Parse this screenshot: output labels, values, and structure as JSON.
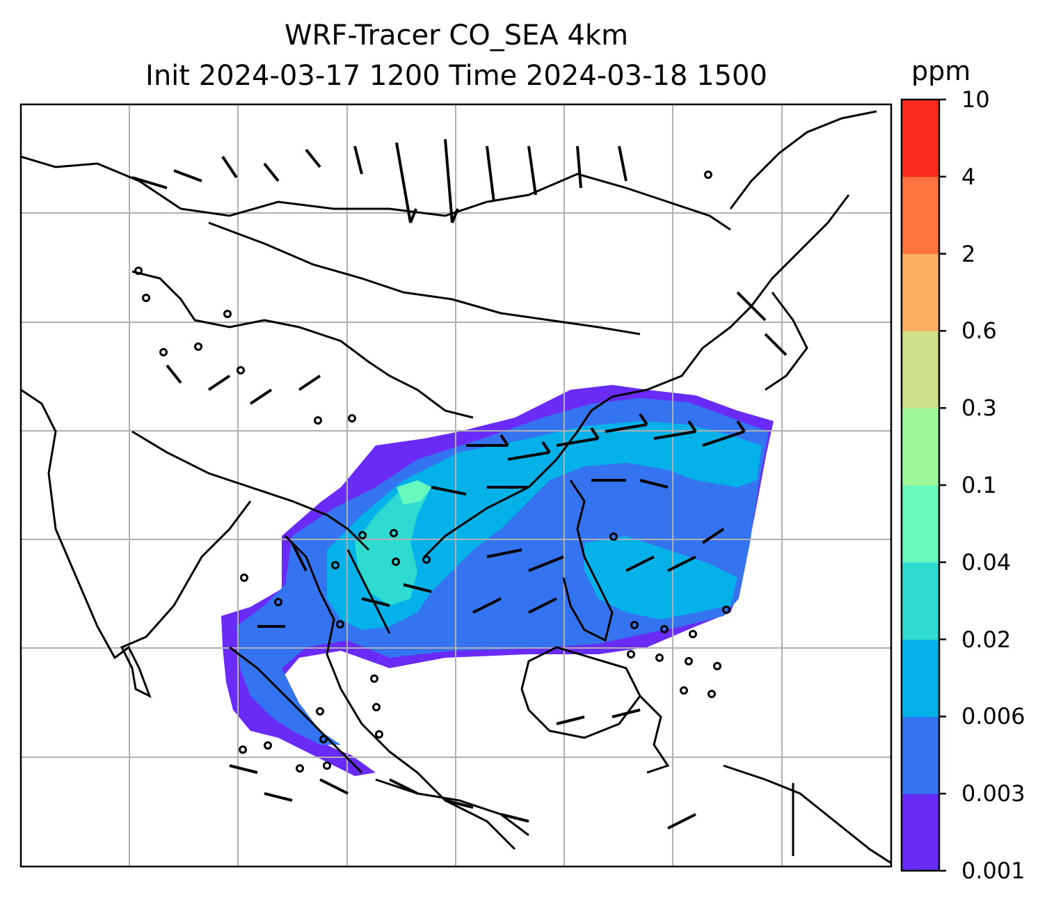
{
  "title": {
    "line1": "WRF-Tracer CO_SEA 4km",
    "line2": "Init 2024-03-17 1200 Time 2024-03-18 1500"
  },
  "colorbar": {
    "unit": "ppm",
    "levels": [
      "0.001",
      "0.003",
      "0.006",
      "0.02",
      "0.04",
      "0.1",
      "0.3",
      "0.6",
      "2",
      "4",
      "10"
    ],
    "colors": [
      "#6a2bf7",
      "#3574f0",
      "#04b2e9",
      "#2edbd0",
      "#66f8bd",
      "#9ef89a",
      "#cfe08a",
      "#fbb062",
      "#fd7440",
      "#fb2c1b"
    ]
  },
  "map": {
    "region": "Southeast Asia",
    "features": [
      "coastlines",
      "country borders",
      "gridlines",
      "wind barbs",
      "CO tracer concentration shading"
    ],
    "background_color": "#ffffff",
    "grid_color": "#b0b0b0"
  }
}
